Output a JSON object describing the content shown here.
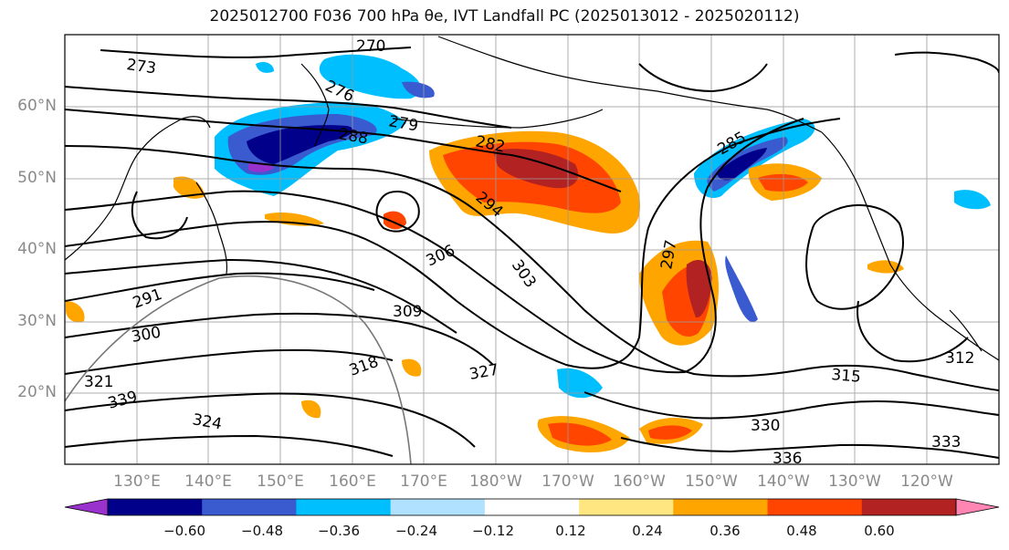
{
  "title": "2025012700 F036 700 hPa θe, IVT Landfall PC (2025013012 - 2025020112)",
  "map": {
    "lat_labels": [
      "60°N",
      "50°N",
      "40°N",
      "30°N",
      "20°N"
    ],
    "lon_labels": [
      "130°E",
      "140°E",
      "150°E",
      "160°E",
      "170°E",
      "180°W",
      "170°W",
      "160°W",
      "150°W",
      "140°W",
      "130°W",
      "120°W"
    ],
    "contour_labels": [
      "270",
      "273",
      "276",
      "279",
      "282",
      "285",
      "288",
      "291",
      "294",
      "297",
      "300",
      "303",
      "306",
      "309",
      "312",
      "315",
      "318",
      "321",
      "324",
      "327",
      "330",
      "333",
      "336",
      "339"
    ],
    "land_color": "#000000"
  },
  "colorbar": {
    "colors": [
      "#9932cc",
      "#00008b",
      "#3a5bd0",
      "#00bfff",
      "#b0e2ff",
      "#ffffff",
      "#ffe680",
      "#ffa500",
      "#ff4500",
      "#b22222",
      "#ff85b3"
    ],
    "ticks": [
      "−0.60",
      "−0.48",
      "−0.36",
      "−0.24",
      "−0.12",
      "0.12",
      "0.24",
      "0.36",
      "0.48",
      "0.60"
    ],
    "values": [
      -0.6,
      -0.48,
      -0.36,
      -0.24,
      -0.12,
      0.12,
      0.24,
      0.36,
      0.48,
      0.6
    ]
  }
}
